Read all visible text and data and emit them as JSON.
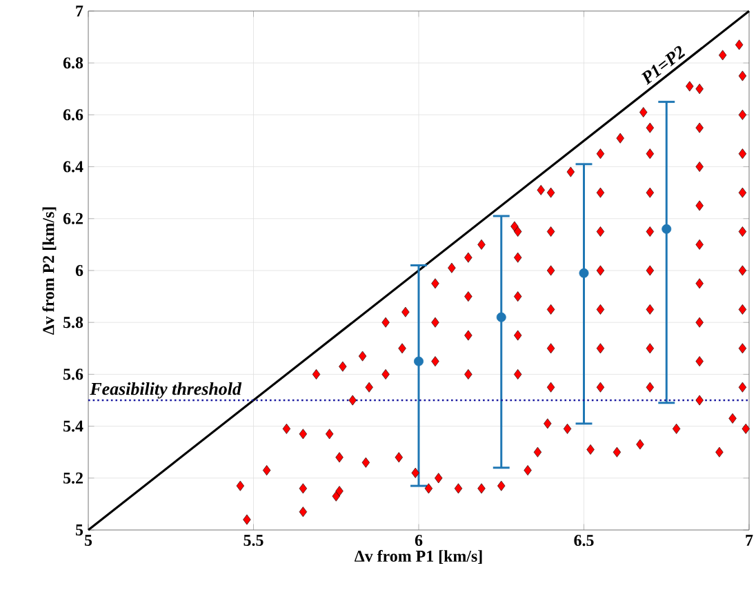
{
  "chart_data": {
    "type": "scatter",
    "xlabel": "Δv from P1 [km/s]",
    "ylabel": "Δv from P2 [km/s]",
    "xlim": [
      5,
      7
    ],
    "ylim": [
      5,
      7
    ],
    "xticks": [
      5,
      5.5,
      6,
      6.5,
      7
    ],
    "yticks": [
      5,
      5.2,
      5.4,
      5.6,
      5.8,
      6,
      6.2,
      6.4,
      6.6,
      6.8,
      7
    ],
    "grid": true,
    "series": [
      {
        "color": "#ff0000",
        "marker": "diamond",
        "x": [
          5.46,
          5.48,
          5.54,
          5.6,
          5.65,
          5.65,
          5.65,
          5.75,
          5.76,
          5.69,
          5.73,
          5.76,
          5.84,
          5.77,
          5.83,
          5.9,
          5.96,
          5.94,
          5.99,
          6.03,
          6.06,
          6.12,
          6.19,
          6.25,
          6.33,
          6.36,
          6.52,
          6.6,
          6.67,
          6.78,
          6.91,
          6.99,
          6.95,
          6.45,
          6.39,
          6.1,
          6.19,
          6.29,
          6.37,
          6.46,
          6.61,
          6.68,
          6.82,
          6.92,
          6.97,
          5.8,
          5.85,
          5.9,
          5.95,
          6.05,
          6.05,
          6.05,
          6.15,
          6.15,
          6.15,
          6.15,
          6.3,
          6.3,
          6.3,
          6.3,
          6.3,
          6.4,
          6.4,
          6.4,
          6.4,
          6.4,
          6.4,
          6.55,
          6.55,
          6.55,
          6.55,
          6.55,
          6.55,
          6.55,
          6.7,
          6.7,
          6.7,
          6.7,
          6.7,
          6.7,
          6.7,
          6.7,
          6.85,
          6.85,
          6.85,
          6.85,
          6.85,
          6.85,
          6.85,
          6.85,
          6.85,
          6.98,
          6.98,
          6.98,
          6.98,
          6.98,
          6.98,
          6.98,
          6.98,
          6.98
        ],
        "values": [
          5.17,
          5.04,
          5.23,
          5.39,
          5.37,
          5.16,
          5.07,
          5.13,
          5.15,
          5.6,
          5.37,
          5.28,
          5.26,
          5.63,
          5.67,
          5.8,
          5.84,
          5.28,
          5.22,
          5.16,
          5.2,
          5.16,
          5.16,
          5.17,
          5.23,
          5.3,
          5.31,
          5.3,
          5.33,
          5.39,
          5.3,
          5.39,
          5.43,
          5.39,
          5.41,
          6.01,
          6.1,
          6.17,
          6.31,
          6.38,
          6.51,
          6.61,
          6.71,
          6.83,
          6.87,
          5.5,
          5.55,
          5.6,
          5.7,
          5.65,
          5.8,
          5.95,
          5.6,
          5.75,
          5.9,
          6.05,
          5.6,
          5.75,
          5.9,
          6.05,
          6.15,
          5.55,
          5.7,
          5.85,
          6.0,
          6.15,
          6.3,
          5.55,
          5.7,
          5.85,
          6.0,
          6.15,
          6.3,
          6.45,
          5.55,
          5.7,
          5.85,
          6.0,
          6.15,
          6.3,
          6.45,
          6.55,
          5.5,
          5.65,
          5.8,
          5.95,
          6.1,
          6.25,
          6.4,
          6.55,
          6.7,
          5.55,
          5.7,
          5.85,
          6.0,
          6.15,
          6.3,
          6.45,
          6.6,
          6.75
        ]
      },
      {
        "type": "line",
        "name": "P1=P2",
        "color": "#000000",
        "marker": "none",
        "line_style": "solid",
        "x": [
          5,
          7
        ],
        "values": [
          5,
          7
        ]
      },
      {
        "color": "#1f77b4",
        "marker": "circle",
        "x": [
          6,
          6.25,
          6.5,
          6.75
        ],
        "values": [
          5.65,
          5.82,
          5.99,
          6.16
        ],
        "errors": [
          [
            5.17,
            6.02
          ],
          [
            5.24,
            6.21
          ],
          [
            5.41,
            6.41
          ],
          [
            5.49,
            6.65
          ]
        ]
      }
    ],
    "ref_lines": [
      {
        "axis": "y",
        "value": 5.5,
        "label": "Feasibility threshold",
        "color": "#1a1aa0",
        "line_style": "dotted"
      }
    ]
  }
}
